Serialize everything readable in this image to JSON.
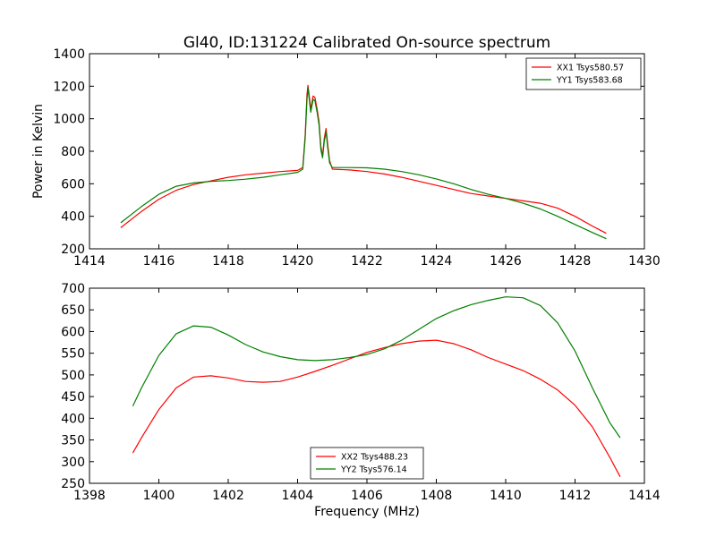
{
  "chart_data": [
    {
      "type": "line",
      "title": "Gl40, ID:131224 Calibrated On-source spectrum",
      "xlabel": "",
      "ylabel": "Power in Kelvin",
      "xlim": [
        1414,
        1430
      ],
      "ylim": [
        200,
        1400
      ],
      "xticks": [
        1414,
        1416,
        1418,
        1420,
        1422,
        1424,
        1426,
        1428,
        1430
      ],
      "yticks": [
        200,
        400,
        600,
        800,
        1000,
        1200,
        1400
      ],
      "grid": false,
      "legend_position": "top-right",
      "series": [
        {
          "name": "XX1 Tsys580.57",
          "color": "#ff0000",
          "x": [
            1414.9,
            1415.5,
            1416,
            1416.5,
            1417,
            1417.5,
            1418,
            1418.5,
            1419,
            1419.5,
            1420,
            1420.15,
            1420.22,
            1420.27,
            1420.3,
            1420.33,
            1420.38,
            1420.45,
            1420.5,
            1420.57,
            1420.62,
            1420.67,
            1420.72,
            1420.77,
            1420.82,
            1420.87,
            1420.92,
            1421,
            1421.5,
            1422,
            1422.5,
            1423,
            1423.5,
            1424,
            1424.5,
            1425,
            1425.5,
            1426,
            1426.5,
            1427,
            1427.5,
            1428,
            1428.5,
            1428.9
          ],
          "y": [
            330,
            430,
            505,
            560,
            595,
            618,
            640,
            655,
            665,
            675,
            682,
            700,
            900,
            1150,
            1205,
            1150,
            1060,
            1140,
            1130,
            1050,
            980,
            830,
            770,
            880,
            940,
            840,
            745,
            690,
            685,
            675,
            660,
            640,
            615,
            590,
            565,
            540,
            525,
            510,
            495,
            480,
            450,
            400,
            340,
            295
          ]
        },
        {
          "name": "YY1 Tsys583.68",
          "color": "#008000",
          "x": [
            1414.9,
            1415.5,
            1416,
            1416.5,
            1417,
            1417.5,
            1418,
            1418.5,
            1419,
            1419.5,
            1420,
            1420.15,
            1420.22,
            1420.27,
            1420.3,
            1420.33,
            1420.38,
            1420.45,
            1420.5,
            1420.57,
            1420.62,
            1420.67,
            1420.72,
            1420.77,
            1420.82,
            1420.87,
            1420.92,
            1421,
            1421.5,
            1422,
            1422.5,
            1423,
            1423.5,
            1424,
            1424.5,
            1425,
            1425.5,
            1426,
            1426.5,
            1427,
            1427.5,
            1428,
            1428.5,
            1428.9
          ],
          "y": [
            360,
            460,
            535,
            585,
            605,
            615,
            620,
            628,
            640,
            655,
            670,
            690,
            880,
            1120,
            1190,
            1130,
            1040,
            1120,
            1110,
            1030,
            960,
            810,
            760,
            860,
            920,
            820,
            730,
            700,
            700,
            698,
            690,
            675,
            655,
            630,
            600,
            565,
            535,
            510,
            480,
            445,
            400,
            350,
            300,
            262
          ]
        }
      ]
    },
    {
      "type": "line",
      "title": "",
      "xlabel": "Frequency (MHz)",
      "ylabel": "",
      "xlim": [
        1398,
        1414
      ],
      "ylim": [
        250,
        700
      ],
      "xticks": [
        1398,
        1400,
        1402,
        1404,
        1406,
        1408,
        1410,
        1412,
        1414
      ],
      "yticks": [
        250,
        300,
        350,
        400,
        450,
        500,
        550,
        600,
        650,
        700
      ],
      "grid": false,
      "legend_position": "bottom-center",
      "series": [
        {
          "name": "XX2 Tsys488.23",
          "color": "#ff0000",
          "x": [
            1399.25,
            1399.5,
            1400,
            1400.5,
            1401,
            1401.5,
            1402,
            1402.5,
            1403,
            1403.5,
            1404,
            1404.5,
            1405,
            1405.5,
            1406,
            1406.5,
            1407,
            1407.5,
            1408,
            1408.5,
            1409,
            1409.5,
            1410,
            1410.5,
            1411,
            1411.5,
            1412,
            1412.5,
            1413,
            1413.3
          ],
          "y": [
            320,
            355,
            420,
            470,
            495,
            498,
            493,
            485,
            483,
            485,
            495,
            508,
            522,
            537,
            552,
            563,
            572,
            578,
            580,
            572,
            558,
            540,
            525,
            510,
            490,
            465,
            430,
            380,
            310,
            265
          ]
        },
        {
          "name": "YY2 Tsys576.14",
          "color": "#008000",
          "x": [
            1399.25,
            1399.5,
            1400,
            1400.5,
            1401,
            1401.5,
            1402,
            1402.5,
            1403,
            1403.5,
            1404,
            1404.5,
            1405,
            1405.5,
            1406,
            1406.5,
            1407,
            1407.5,
            1408,
            1408.5,
            1409,
            1409.5,
            1410,
            1410.5,
            1411,
            1411.5,
            1412,
            1412.5,
            1413,
            1413.3
          ],
          "y": [
            428,
            470,
            545,
            595,
            613,
            610,
            592,
            570,
            553,
            542,
            535,
            533,
            535,
            540,
            547,
            560,
            580,
            605,
            630,
            648,
            662,
            672,
            680,
            678,
            660,
            620,
            555,
            470,
            390,
            355
          ]
        }
      ]
    }
  ]
}
